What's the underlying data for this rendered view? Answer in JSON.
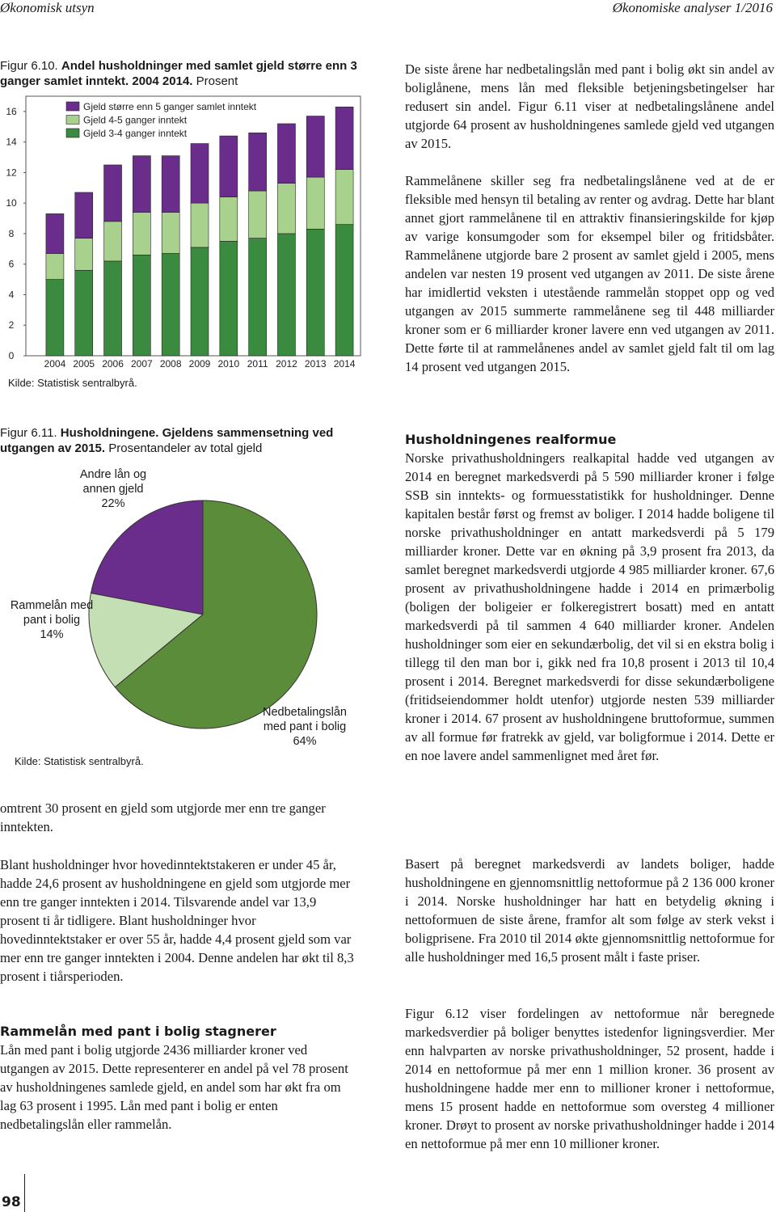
{
  "header": {
    "left": "Økonomisk utsyn",
    "right": "Økonomiske analyser 1/2016"
  },
  "page_number": "98",
  "chart_data": [
    {
      "type": "bar",
      "stacked": true,
      "figure_label": "Figur 6.10.",
      "title": "Andel husholdninger med samlet gjeld større enn 3 ganger samlet inntekt. 2004 2014.",
      "subtitle": "Prosent",
      "source": "Kilde: Statistisk sentralbyrå.",
      "categories": [
        "2004",
        "2005",
        "2006",
        "2007",
        "2008",
        "2009",
        "2010",
        "2011",
        "2012",
        "2013",
        "2014"
      ],
      "series": [
        {
          "name": "Gjeld større enn 5 ganger samlet inntekt",
          "color": "#6b2d8c",
          "values": [
            2.6,
            3.0,
            3.7,
            3.7,
            3.7,
            3.9,
            4.0,
            3.8,
            3.9,
            4.0,
            4.1
          ]
        },
        {
          "name": "Gjeld 4-5 ganger inntekt",
          "color": "#a9d18e",
          "values": [
            1.7,
            2.1,
            2.6,
            2.8,
            2.7,
            2.9,
            2.9,
            3.1,
            3.3,
            3.4,
            3.6
          ]
        },
        {
          "name": "Gjeld 3-4 ganger inntekt",
          "color": "#3a8b3f",
          "values": [
            5.0,
            5.6,
            6.2,
            6.6,
            6.7,
            7.1,
            7.5,
            7.7,
            8.0,
            8.3,
            8.6
          ]
        }
      ],
      "ylim": [
        0,
        17
      ],
      "yticks": [
        0,
        2,
        4,
        6,
        8,
        10,
        12,
        14,
        16
      ]
    },
    {
      "type": "pie",
      "figure_label": "Figur 6.11.",
      "title": "Husholdningene. Gjeldens sammensetning ved utgangen av 2015.",
      "subtitle": "Prosentandeler av total gjeld",
      "source": "Kilde: Statistisk sentralbyrå.",
      "categories": [
        "Andre lån og annen gjeld",
        "Rammelån med pant i bolig",
        "Nedbetalingslån med pant i bolig"
      ],
      "values": [
        22,
        14,
        64
      ],
      "value_labels": [
        "22%",
        "14%",
        "64%"
      ],
      "colors": [
        "#6b2d8c",
        "#c5dfb4",
        "#5b8c3a"
      ]
    }
  ],
  "left_column": [
    {
      "type": "p",
      "text": "omtrent 30 prosent en gjeld som utgjorde mer enn tre ganger inntekten."
    },
    {
      "type": "p",
      "text": "Blant husholdninger hvor hovedinntektstakeren er under 45 år, hadde 24,6 prosent av husholdningene en gjeld som utgjorde mer enn tre ganger inntekten i 2014. Tilsvarende andel var 13,9 prosent ti år tidligere. Blant husholdninger hvor hovedinntektstaker er over 55 år, hadde 4,4 prosent gjeld som var mer enn tre ganger inntekten i 2004. Denne andelen har økt til 8,3 prosent i tiårsperioden."
    },
    {
      "type": "h",
      "text": "Rammelån med pant i bolig stagnerer"
    },
    {
      "type": "p",
      "text": "Lån med pant i bolig utgjorde 2436 milliarder kroner ved utgangen av 2015. Dette representerer en andel på vel 78 prosent av husholdningenes samlede gjeld, en andel som har økt fra om lag 63 prosent i 1995. Lån med pant i bolig er enten nedbetalingslån eller rammelån."
    }
  ],
  "right_column": [
    {
      "type": "p",
      "text": "De siste årene har nedbetalingslån med pant i bolig økt sin andel av boliglånene, mens lån med fleksible betjeningsbetingelser har redusert sin andel. Figur 6.11 viser at nedbetalingslånene andel utgjorde 64 prosent av husholdningenes samlede gjeld ved utgangen av 2015."
    },
    {
      "type": "p",
      "text": "Rammelånene skiller seg fra nedbetalingslånene ved at de er fleksible med hensyn til betaling av renter og avdrag. Dette har blant annet gjort rammelånene til en attraktiv finansieringskilde for kjøp av varige konsumgoder som for eksempel biler og fritidsbåter. Rammelånene utgjorde bare 2 prosent av samlet gjeld i 2005, mens andelen var nesten 19 prosent ved utgangen av 2011. De siste årene har imidlertid veksten i utestående rammelån stoppet opp og ved utgangen av 2015 summerte rammelånene seg til 448 milliarder kroner som er 6 milliarder kroner lavere enn ved utgangen av 2011. Dette førte til at rammelånenes andel av samlet gjeld falt til om lag 14 prosent ved utgangen 2015."
    },
    {
      "type": "h",
      "text": "Husholdningenes realformue"
    },
    {
      "type": "p",
      "text": "Norske privathusholdningers realkapital hadde ved utgangen av 2014 en beregnet markedsverdi på 5 590 milliarder kroner i følge SSB sin inntekts- og formuesstatistikk for husholdninger. Denne kapitalen består først og fremst av boliger. I 2014 hadde boligene til norske privathusholdninger en antatt markedsverdi på 5 179 milliarder kroner. Dette var en økning på 3,9 prosent fra 2013, da samlet beregnet markedsverdi utgjorde 4 985 milliarder kroner. 67,6 prosent av privathusholdningene hadde i 2014 en primærbolig (boligen der boligeier er folkeregistrert bosatt) med en antatt markedsverdi på til sammen 4 640 milliarder kroner. Andelen husholdninger som eier en sekundærbolig, det vil si en ekstra bolig i tillegg til den man bor i, gikk ned fra 10,8 prosent i 2013 til 10,4 prosent i 2014. Beregnet markedsverdi for disse sekundærboligene (fritidseiendommer holdt utenfor) utgjorde nesten 539 milliarder kroner i 2014. 67 prosent av husholdningene bruttoformue, summen av all formue før fratrekk av gjeld, var boligformue i 2014. Dette er en noe lavere andel sammenlignet med året før."
    },
    {
      "type": "p",
      "text": "Basert på beregnet markedsverdi av landets boliger, hadde husholdningene en gjennomsnittlig nettoformue på 2 136 000 kroner i 2014. Norske husholdninger har hatt en betydelig økning i nettoformuen de siste årene, framfor alt som følge av sterk vekst i boligprisene. Fra 2010 til 2014 økte gjennomsnittlig nettoformue for alle husholdninger med 16,5 prosent målt i faste priser."
    },
    {
      "type": "p",
      "text": "Figur 6.12 viser fordelingen av nettoformue når beregnede markedsverdier på boliger benyttes istedenfor ligningsverdier. Mer enn halvparten av norske privathusholdninger, 52 prosent, hadde i 2014 en nettoformue på mer enn 1 million kroner. 36 prosent av husholdningene hadde mer enn to millioner kroner i nettoformue, mens 15 prosent hadde en nettoformue som oversteg 4 millioner kroner. Drøyt to prosent av norske privathusholdninger hadde i 2014 en nettoformue på mer enn 10 millioner kroner."
    }
  ]
}
